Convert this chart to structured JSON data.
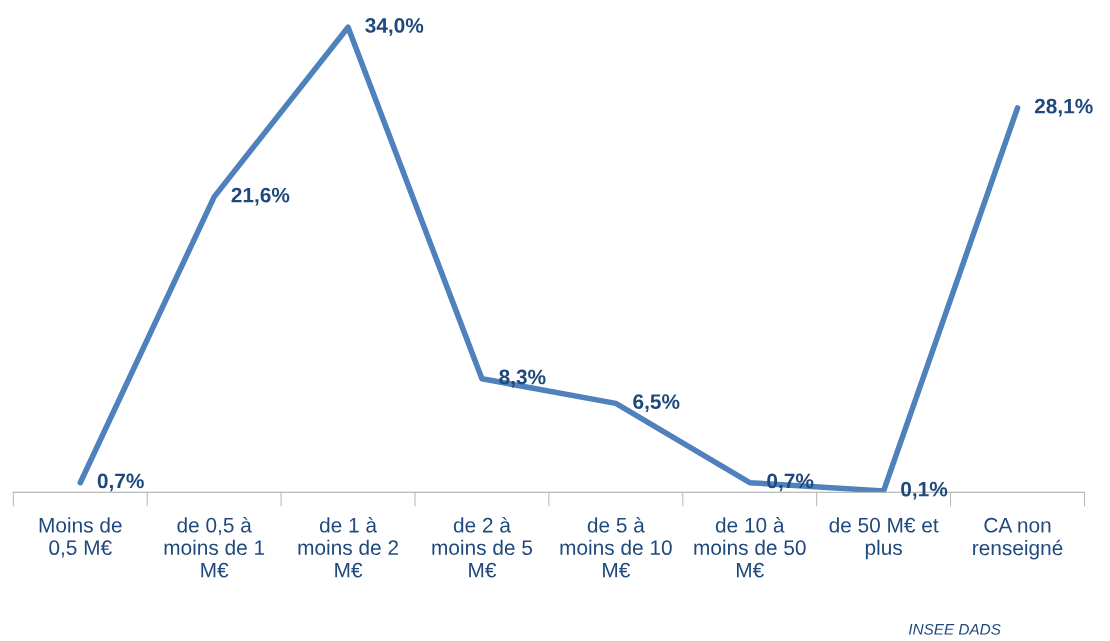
{
  "chart_data": {
    "type": "line",
    "categories": [
      "Moins de\n0,5 M€",
      "de 0,5 à\nmoins de 1\nM€",
      "de 1 à\nmoins de 2\nM€",
      "de 2 à\nmoins de 5\nM€",
      "de 5 à\nmoins de 10\nM€",
      "de 10 à\nmoins de 50\nM€",
      "de 50 M€ et\nplus",
      "CA non\nrenseigné"
    ],
    "series": [
      {
        "color": "#4f81bd",
        "values": [
          0.7,
          21.6,
          34.0,
          8.3,
          6.5,
          0.7,
          0.1,
          28.1
        ],
        "value_labels": [
          "0,7%",
          "21,6%",
          "34,0%",
          "8,3%",
          "6,5%",
          "0,7%",
          "0,1%",
          "28,1%"
        ]
      }
    ],
    "grid": false,
    "legend": false,
    "marker": "none",
    "line_style": "solid",
    "annotations": [
      "INSEE DADS"
    ]
  }
}
